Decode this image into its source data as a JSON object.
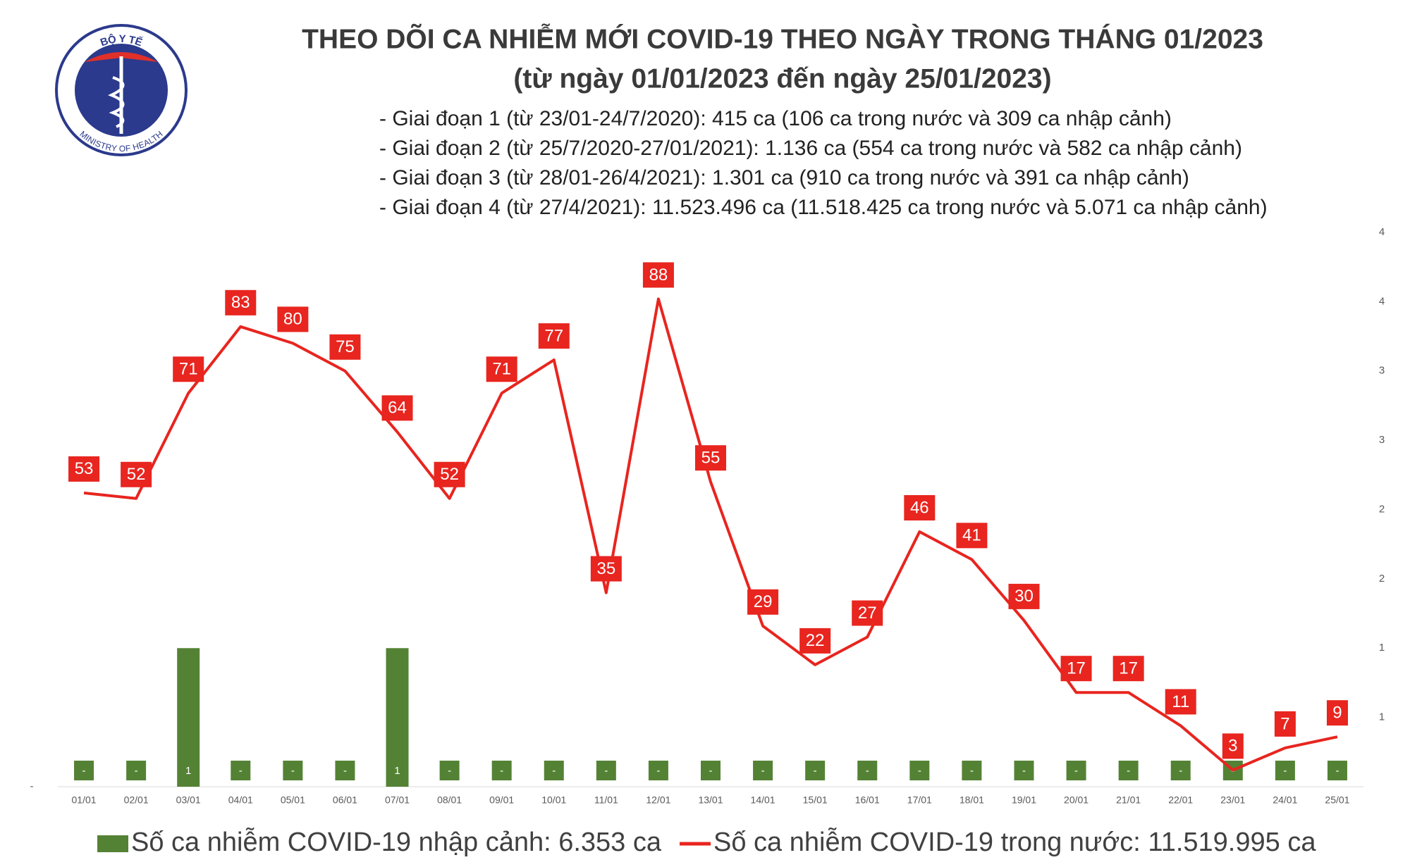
{
  "logo": {
    "top": "BỘ Y TẾ",
    "bottom": "MINISTRY OF HEALTH"
  },
  "chart_data": {
    "type": "combo",
    "title": "THEO DÕI CA NHIỄM MỚI COVID-19 THEO NGÀY TRONG THÁNG 01/2023",
    "subtitle": "(từ ngày 01/01/2023 đến ngày 25/01/2023)",
    "annotations": [
      "- Giai đoạn 1 (từ 23/01-24/7/2020): 415 ca (106 ca trong nước và 309 ca nhập cảnh)",
      "- Giai đoạn 2 (từ 25/7/2020-27/01/2021): 1.136 ca (554 ca trong nước và 582 ca nhập cảnh)",
      "- Giai đoạn 3 (từ 28/01-26/4/2021): 1.301 ca (910 ca trong nước và 391 ca nhập cảnh)",
      "- Giai đoạn 4 (từ 27/4/2021): 11.523.496 ca (11.518.425 ca trong nước và 5.071 ca nhập cảnh)"
    ],
    "categories": [
      "01/01",
      "02/01",
      "03/01",
      "04/01",
      "05/01",
      "06/01",
      "07/01",
      "08/01",
      "09/01",
      "10/01",
      "11/01",
      "12/01",
      "13/01",
      "14/01",
      "15/01",
      "16/01",
      "17/01",
      "18/01",
      "19/01",
      "20/01",
      "21/01",
      "22/01",
      "23/01",
      "24/01",
      "25/01"
    ],
    "ylim": [
      0,
      100
    ],
    "yticks": [
      {
        "value": 0,
        "label": "-"
      }
    ],
    "y2lim": [
      0,
      4
    ],
    "y2ticks": [
      {
        "value": 0.5,
        "label": "1"
      },
      {
        "value": 1,
        "label": "1"
      },
      {
        "value": 1.5,
        "label": "2"
      },
      {
        "value": 2,
        "label": "2"
      },
      {
        "value": 2.5,
        "label": "3"
      },
      {
        "value": 3,
        "label": "3"
      },
      {
        "value": 3.5,
        "label": "4"
      },
      {
        "value": 4,
        "label": "4"
      }
    ],
    "series": [
      {
        "name": "Số ca nhiễm COVID-19 nhập cảnh: 6.353 ca",
        "type": "bar",
        "axis": "y2",
        "color": "#548235",
        "values": [
          0,
          0,
          1,
          0,
          0,
          0,
          1,
          0,
          0,
          0,
          0,
          0,
          0,
          0,
          0,
          0,
          0,
          0,
          0,
          0,
          0,
          0,
          0,
          0,
          0
        ],
        "value_labels": [
          "-",
          "-",
          "1",
          "-",
          "-",
          "-",
          "1",
          "-",
          "-",
          "-",
          "-",
          "-",
          "-",
          "-",
          "-",
          "-",
          "-",
          "-",
          "-",
          "-",
          "-",
          "-",
          "-",
          "-",
          "-"
        ]
      },
      {
        "name": "Số ca nhiễm COVID-19 trong nước: 11.519.995 ca",
        "type": "line",
        "color": "#e8251f",
        "values": [
          53,
          52,
          71,
          83,
          80,
          75,
          64,
          52,
          71,
          77,
          35,
          88,
          55,
          29,
          22,
          27,
          46,
          41,
          30,
          17,
          17,
          11,
          3,
          7,
          9
        ]
      }
    ]
  }
}
